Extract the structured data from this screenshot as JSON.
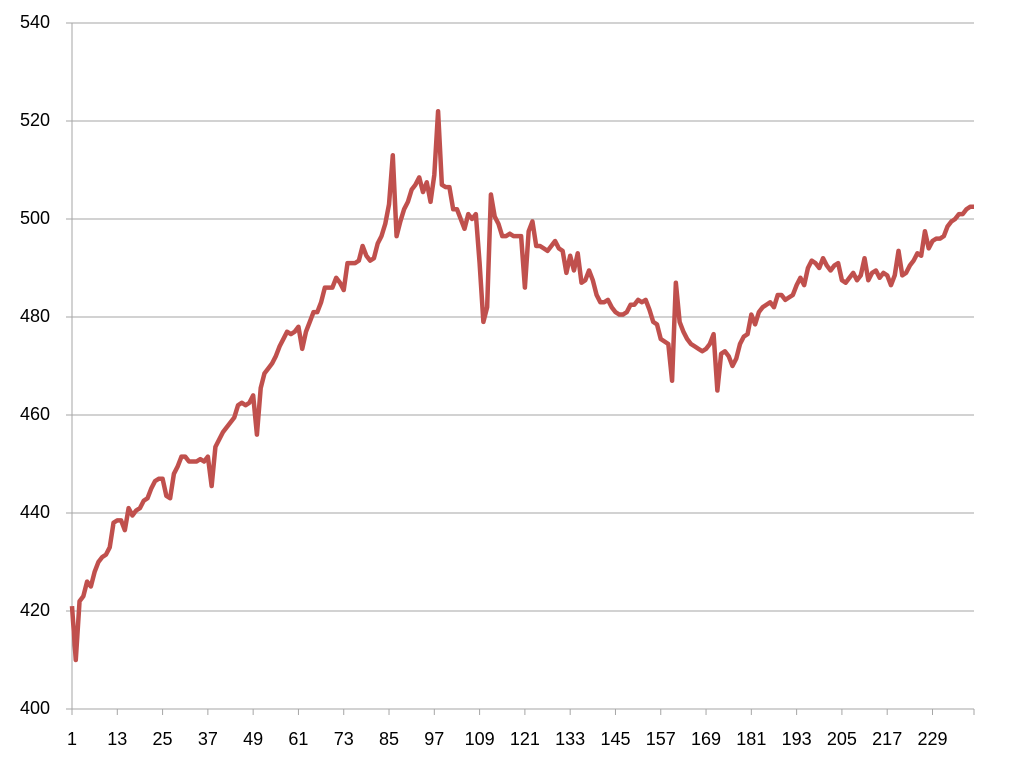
{
  "chart_data": {
    "type": "line",
    "x": [
      1,
      2,
      3,
      4,
      5,
      6,
      7,
      8,
      9,
      10,
      11,
      12,
      13,
      14,
      15,
      16,
      17,
      18,
      19,
      20,
      21,
      22,
      23,
      24,
      25,
      26,
      27,
      28,
      29,
      30,
      31,
      32,
      33,
      34,
      35,
      36,
      37,
      38,
      39,
      40,
      41,
      42,
      43,
      44,
      45,
      46,
      47,
      48,
      49,
      50,
      51,
      52,
      53,
      54,
      55,
      56,
      57,
      58,
      59,
      60,
      61,
      62,
      63,
      64,
      65,
      66,
      67,
      68,
      69,
      70,
      71,
      72,
      73,
      74,
      75,
      76,
      77,
      78,
      79,
      80,
      81,
      82,
      83,
      84,
      85,
      86,
      87,
      88,
      89,
      90,
      91,
      92,
      93,
      94,
      95,
      96,
      97,
      98,
      99,
      100,
      101,
      102,
      103,
      104,
      105,
      106,
      107,
      108,
      109,
      110,
      111,
      112,
      113,
      114,
      115,
      116,
      117,
      118,
      119,
      120,
      121,
      122,
      123,
      124,
      125,
      126,
      127,
      128,
      129,
      130,
      131,
      132,
      133,
      134,
      135,
      136,
      137,
      138,
      139,
      140,
      141,
      142,
      143,
      144,
      145,
      146,
      147,
      148,
      149,
      150,
      151,
      152,
      153,
      154,
      155,
      156,
      157,
      158,
      159,
      160,
      161,
      162,
      163,
      164,
      165,
      166,
      167,
      168,
      169,
      170,
      171,
      172,
      173,
      174,
      175,
      176,
      177,
      178,
      179,
      180,
      181,
      182,
      183,
      184,
      185,
      186,
      187,
      188,
      189,
      190,
      191,
      192,
      193,
      194,
      195,
      196,
      197,
      198,
      199,
      200,
      201,
      202,
      203,
      204,
      205,
      206,
      207,
      208,
      209,
      210,
      211,
      212,
      213,
      214,
      215,
      216,
      217,
      218,
      219,
      220,
      221,
      222,
      223,
      224,
      225,
      226,
      227,
      228,
      229,
      230,
      231,
      232,
      233,
      234,
      235,
      236,
      237,
      238,
      239,
      240
    ],
    "series": [
      {
        "color": "#c0504d",
        "values": [
          421,
          410,
          422,
          423,
          426,
          425,
          428,
          430,
          431,
          431.5,
          433,
          438,
          438.5,
          438.5,
          436.5,
          441,
          439.5,
          440.5,
          441,
          442.5,
          443,
          445,
          446.5,
          447,
          447,
          443.5,
          443,
          448,
          449.5,
          451.5,
          451.5,
          450.5,
          450.5,
          450.5,
          451,
          450.5,
          451.5,
          445.5,
          453.5,
          455,
          456.5,
          457.5,
          458.5,
          459.5,
          462,
          462.5,
          462,
          462.5,
          464,
          456,
          465.5,
          468.5,
          469.5,
          470.5,
          472,
          474,
          475.5,
          477,
          476.5,
          477,
          478,
          473.5,
          477,
          479,
          481,
          481,
          483,
          486,
          486,
          486,
          488,
          487,
          485.5,
          491,
          491,
          491,
          491.5,
          494.5,
          492.5,
          491.5,
          492,
          495,
          496.5,
          499,
          503,
          513,
          496.5,
          499.5,
          502,
          503.5,
          506,
          507,
          508.5,
          505.5,
          507.5,
          503.5,
          509,
          522,
          507,
          506.5,
          506.5,
          502,
          502,
          500,
          498,
          501,
          500,
          501,
          491,
          479,
          482,
          505,
          500.5,
          499,
          496.5,
          496.5,
          497,
          496.5,
          496.5,
          496.5,
          486,
          497.5,
          499.5,
          494.5,
          494.5,
          494,
          493.5,
          494.5,
          495.5,
          494,
          493.5,
          489,
          492.5,
          489.5,
          493,
          487,
          487.5,
          489.5,
          487.5,
          484.5,
          483,
          483,
          483.5,
          482,
          481,
          480.5,
          480.5,
          481,
          482.5,
          482.5,
          483.5,
          483,
          483.5,
          481.5,
          479,
          478.5,
          475.5,
          475,
          474.5,
          467,
          487,
          479,
          477,
          475.5,
          474.5,
          474,
          473.5,
          473,
          473.5,
          474.5,
          476.5,
          465,
          472.5,
          473,
          472,
          470,
          471.5,
          474.5,
          476,
          476.5,
          480.5,
          478.5,
          481,
          482,
          482.5,
          483,
          482,
          484.5,
          484.5,
          483.5,
          484,
          484.5,
          486.5,
          488,
          486.5,
          490,
          491.5,
          491,
          490,
          492,
          490.5,
          489.5,
          490.5,
          491,
          487.5,
          487,
          488,
          489,
          487.5,
          488.5,
          492,
          487.5,
          489,
          489.5,
          488,
          489,
          488.5,
          486.5,
          488.5,
          493.5,
          488.5,
          489,
          490.5,
          491.5,
          493,
          492.5,
          497.5,
          494,
          495.5,
          496,
          496,
          496.5,
          498.5,
          499.5,
          500,
          501,
          501,
          502,
          502.5,
          502.5
        ]
      }
    ],
    "xlim": [
      1,
      240
    ],
    "xticks": [
      1,
      13,
      25,
      37,
      49,
      61,
      73,
      85,
      97,
      109,
      121,
      133,
      145,
      157,
      169,
      181,
      193,
      205,
      217,
      229
    ],
    "ylim": [
      400,
      540
    ],
    "yticks": [
      400,
      420,
      440,
      460,
      480,
      500,
      520,
      540
    ],
    "grid": true
  }
}
